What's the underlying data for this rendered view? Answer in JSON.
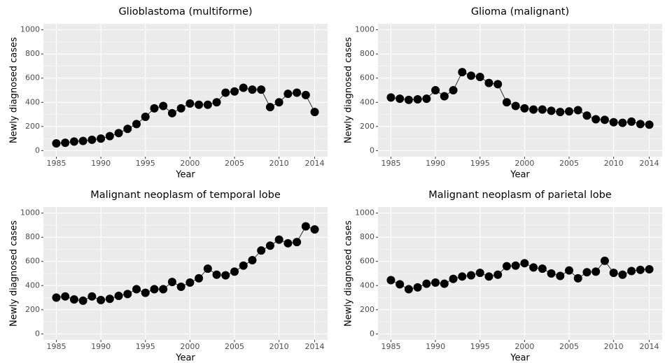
{
  "chart_data": [
    {
      "type": "line",
      "title": "Glioblastoma (multiforme)",
      "xlabel": "Year",
      "ylabel": "Newly diagnosed cases",
      "x": [
        1985,
        1986,
        1987,
        1988,
        1989,
        1990,
        1991,
        1992,
        1993,
        1994,
        1995,
        1996,
        1997,
        1998,
        1999,
        2000,
        2001,
        2002,
        2003,
        2004,
        2005,
        2006,
        2007,
        2008,
        2009,
        2010,
        2011,
        2012,
        2013,
        2014
      ],
      "values": [
        60,
        65,
        75,
        80,
        90,
        100,
        120,
        145,
        180,
        220,
        280,
        350,
        370,
        310,
        350,
        390,
        380,
        380,
        400,
        480,
        490,
        520,
        505,
        505,
        360,
        400,
        470,
        480,
        460,
        320
      ],
      "color": "#000000",
      "xlim": [
        1983.55,
        2015.45
      ],
      "ylim": [
        -50,
        1050
      ],
      "xticks": [
        1985,
        1990,
        1995,
        2000,
        2005,
        2010,
        2014
      ],
      "yticks": [
        0,
        200,
        400,
        600,
        800,
        1000
      ],
      "grid": true
    },
    {
      "type": "line",
      "title": "Glioma (malignant)",
      "xlabel": "Year",
      "ylabel": "Newly diagnosed cases",
      "x": [
        1985,
        1986,
        1987,
        1988,
        1989,
        1990,
        1991,
        1992,
        1993,
        1994,
        1995,
        1996,
        1997,
        1998,
        1999,
        2000,
        2001,
        2002,
        2003,
        2004,
        2005,
        2006,
        2007,
        2008,
        2009,
        2010,
        2011,
        2012,
        2013,
        2014
      ],
      "values": [
        440,
        430,
        420,
        425,
        430,
        500,
        450,
        500,
        650,
        620,
        610,
        560,
        550,
        400,
        370,
        350,
        340,
        340,
        330,
        320,
        325,
        335,
        290,
        260,
        255,
        235,
        230,
        240,
        220,
        215
      ],
      "color": "#000000",
      "xlim": [
        1983.55,
        2015.45
      ],
      "ylim": [
        -50,
        1050
      ],
      "xticks": [
        1985,
        1990,
        1995,
        2000,
        2005,
        2010,
        2014
      ],
      "yticks": [
        0,
        200,
        400,
        600,
        800,
        1000
      ],
      "grid": true
    },
    {
      "type": "line",
      "title": "Malignant neoplasm of temporal lobe",
      "xlabel": "Year",
      "ylabel": "Newly diagnosed cases",
      "x": [
        1985,
        1986,
        1987,
        1988,
        1989,
        1990,
        1991,
        1992,
        1993,
        1994,
        1995,
        1996,
        1997,
        1998,
        1999,
        2000,
        2001,
        2002,
        2003,
        2004,
        2005,
        2006,
        2007,
        2008,
        2009,
        2010,
        2011,
        2012,
        2013,
        2014
      ],
      "values": [
        300,
        310,
        285,
        275,
        310,
        280,
        290,
        315,
        330,
        370,
        340,
        370,
        370,
        430,
        390,
        425,
        460,
        540,
        490,
        485,
        515,
        565,
        610,
        690,
        730,
        780,
        750,
        760,
        890,
        865
      ],
      "color": "#000000",
      "xlim": [
        1983.55,
        2015.45
      ],
      "ylim": [
        -50,
        1050
      ],
      "xticks": [
        1985,
        1990,
        1995,
        2000,
        2005,
        2010,
        2014
      ],
      "yticks": [
        0,
        200,
        400,
        600,
        800,
        1000
      ],
      "grid": true
    },
    {
      "type": "line",
      "title": "Malignant neoplasm of parietal lobe",
      "xlabel": "Year",
      "ylabel": "Newly diagnosed cases",
      "x": [
        1985,
        1986,
        1987,
        1988,
        1989,
        1990,
        1991,
        1992,
        1993,
        1994,
        1995,
        1996,
        1997,
        1998,
        1999,
        2000,
        2001,
        2002,
        2003,
        2004,
        2005,
        2006,
        2007,
        2008,
        2009,
        2010,
        2011,
        2012,
        2013,
        2014
      ],
      "values": [
        445,
        410,
        370,
        385,
        415,
        425,
        415,
        455,
        475,
        485,
        505,
        475,
        490,
        560,
        565,
        585,
        550,
        540,
        500,
        480,
        525,
        460,
        510,
        515,
        605,
        505,
        490,
        520,
        530,
        535
      ],
      "color": "#000000",
      "xlim": [
        1983.55,
        2015.45
      ],
      "ylim": [
        -50,
        1050
      ],
      "xticks": [
        1985,
        1990,
        1995,
        2000,
        2005,
        2010,
        2014
      ],
      "yticks": [
        0,
        200,
        400,
        600,
        800,
        1000
      ],
      "grid": true
    }
  ]
}
